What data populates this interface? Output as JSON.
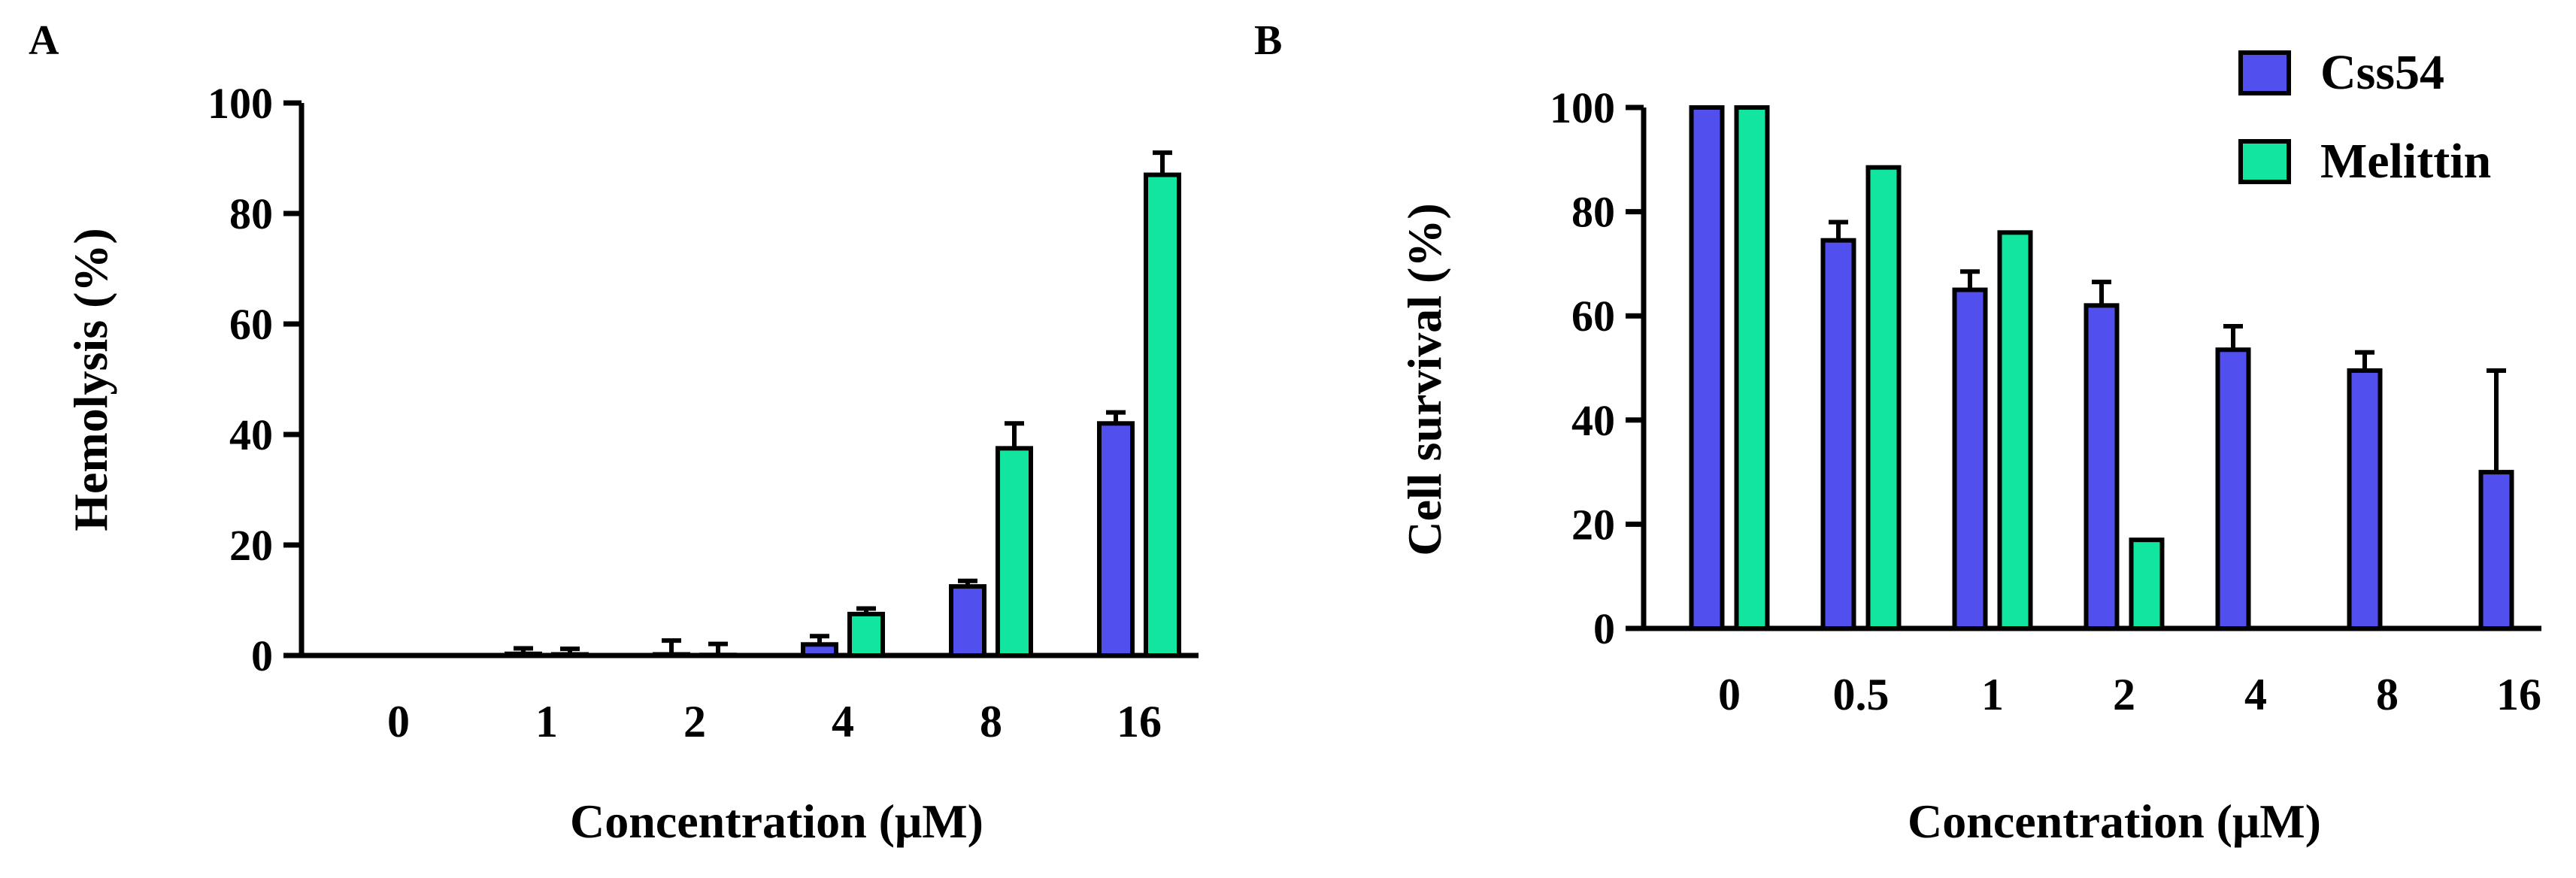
{
  "colors": {
    "css54": "#5150ee",
    "melittin": "#12e5a0",
    "axis": "#000000"
  },
  "chart_data": [
    {
      "panel": "A",
      "type": "bar",
      "xlabel": "Concentration  (μM)",
      "ylabel": "Hemolysis  (%)",
      "ylim": [
        0,
        100
      ],
      "yticks": [
        "0",
        "20",
        "40",
        "60",
        "80",
        "100"
      ],
      "categories": [
        "0",
        "1",
        "2",
        "4",
        "8",
        "16"
      ],
      "series": [
        {
          "name": "Css54",
          "values": [
            0,
            0.3,
            0.2,
            2,
            12.5,
            42
          ],
          "errors": [
            0,
            1,
            2.5,
            1.5,
            1,
            2
          ]
        },
        {
          "name": "Melittin",
          "values": [
            0,
            0.2,
            0.1,
            7.5,
            37.5,
            87
          ],
          "errors": [
            0,
            1,
            2,
            1,
            4.5,
            4
          ]
        }
      ]
    },
    {
      "panel": "B",
      "type": "bar",
      "xlabel": "Concentration (μM)",
      "ylabel": "Cell survival  (%)",
      "ylim": [
        0,
        100
      ],
      "yticks": [
        "0",
        "20",
        "40",
        "60",
        "80",
        "100"
      ],
      "categories": [
        "0",
        "0.5",
        "1",
        "2",
        "4",
        "8",
        "16"
      ],
      "legend_position": "top-right",
      "series": [
        {
          "name": "Css54",
          "values": [
            100,
            74.5,
            65,
            62,
            53.5,
            49.5,
            30
          ],
          "errors": [
            0,
            3.5,
            3.5,
            4.5,
            4.5,
            3.5,
            19.5
          ]
        },
        {
          "name": "Melittin",
          "values": [
            100,
            88.5,
            76,
            17,
            null,
            null,
            null
          ],
          "errors": [
            0,
            0,
            0,
            0,
            0,
            0,
            0
          ]
        }
      ]
    }
  ]
}
